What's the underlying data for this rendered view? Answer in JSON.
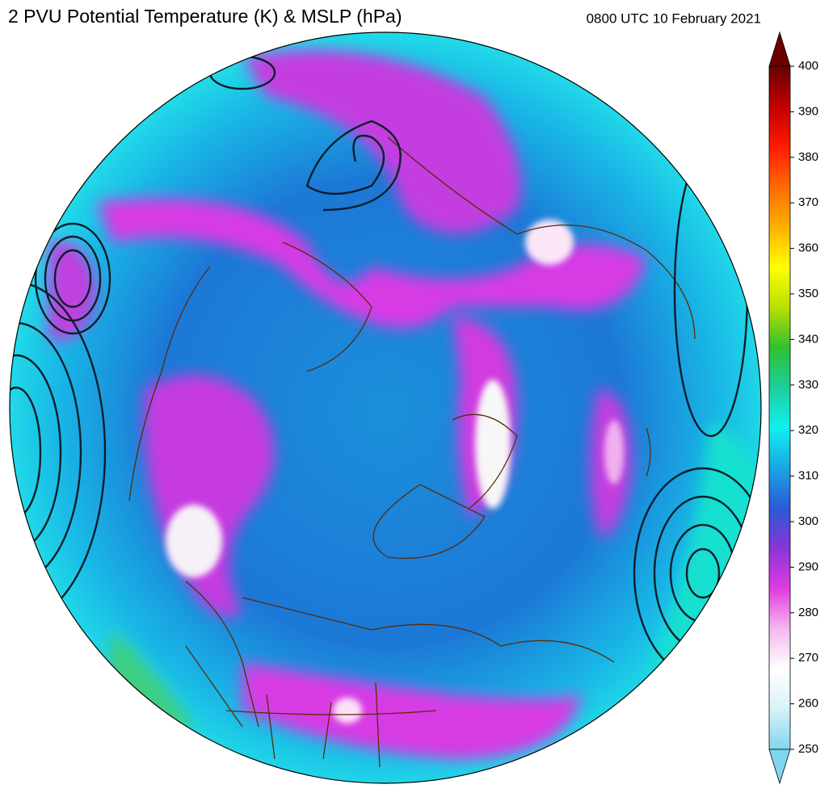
{
  "title": "2 PVU Potential Temperature (K) & MSLP (hPa)",
  "valid_time": "0800 UTC 10 February 2021",
  "colorbar": {
    "lim": [
      250,
      400
    ],
    "ticks": [
      250,
      260,
      270,
      280,
      290,
      300,
      310,
      320,
      330,
      340,
      350,
      360,
      370,
      380,
      390,
      400
    ],
    "colors": [
      "#7fd6ee",
      "#d8f2f8",
      "#ffffff",
      "#f4b8ee",
      "#e03ce0",
      "#8a34d8",
      "#2a5ad6",
      "#1aa6e4",
      "#10f0f0",
      "#1ccf9c",
      "#30c030",
      "#b8e000",
      "#ffff00",
      "#ffb000",
      "#ff6a00",
      "#ff1a00",
      "#c00000",
      "#6a0000"
    ]
  }
}
